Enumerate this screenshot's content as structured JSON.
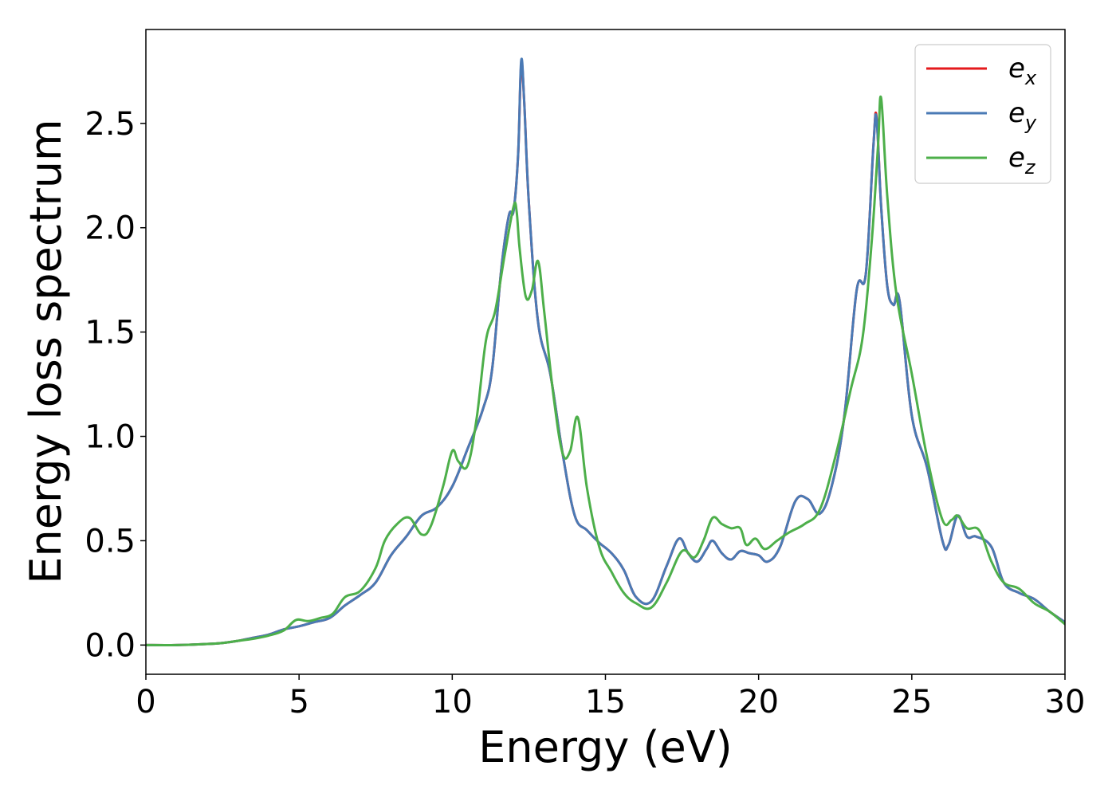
{
  "chart_data": {
    "type": "line",
    "title": "",
    "xlabel": "Energy (eV)",
    "ylabel": "Energy loss spectrum",
    "xlim": [
      0,
      30
    ],
    "ylim": [
      -0.14,
      2.95
    ],
    "xticks": [
      0,
      5,
      10,
      15,
      20,
      25,
      30
    ],
    "xtick_labels": [
      "0",
      "5",
      "10",
      "15",
      "20",
      "25",
      "30"
    ],
    "yticks": [
      0.0,
      0.5,
      1.0,
      1.5,
      2.0,
      2.5
    ],
    "ytick_labels": [
      "0.0",
      "0.5",
      "1.0",
      "1.5",
      "2.0",
      "2.5"
    ],
    "grid": false,
    "legend_position": "top-right",
    "series": [
      {
        "name": "e_x",
        "legend_main": "e",
        "legend_sub": "x",
        "color": "#e41a1c",
        "x": [
          0,
          1,
          2,
          2.5,
          3,
          3.5,
          4,
          4.5,
          5,
          5.5,
          6,
          6.5,
          7,
          7.5,
          8,
          8.5,
          9,
          9.5,
          10,
          10.5,
          11,
          11.3,
          11.6,
          11.85,
          12,
          12.15,
          12.25,
          12.35,
          12.5,
          12.8,
          13.2,
          13.6,
          14,
          14.4,
          14.8,
          15.2,
          15.6,
          16,
          16.5,
          17,
          17.4,
          17.7,
          18,
          18.3,
          18.5,
          18.8,
          19.1,
          19.4,
          19.7,
          20,
          20.3,
          20.7,
          21.2,
          21.6,
          22,
          22.4,
          22.8,
          23.2,
          23.5,
          23.75,
          23.85,
          24,
          24.2,
          24.4,
          24.6,
          25,
          25.5,
          26,
          26.2,
          26.5,
          26.8,
          27.1,
          27.6,
          28,
          28.5,
          29,
          29.5,
          30
        ],
        "y": [
          0.0,
          0.0,
          0.005,
          0.01,
          0.02,
          0.035,
          0.05,
          0.075,
          0.09,
          0.11,
          0.13,
          0.19,
          0.24,
          0.3,
          0.43,
          0.52,
          0.62,
          0.66,
          0.76,
          0.94,
          1.13,
          1.32,
          1.8,
          2.06,
          2.08,
          2.35,
          2.78,
          2.6,
          2.12,
          1.55,
          1.3,
          0.92,
          0.62,
          0.55,
          0.49,
          0.44,
          0.36,
          0.23,
          0.21,
          0.38,
          0.51,
          0.44,
          0.4,
          0.46,
          0.5,
          0.44,
          0.41,
          0.45,
          0.44,
          0.43,
          0.4,
          0.47,
          0.69,
          0.7,
          0.63,
          0.77,
          1.1,
          1.7,
          1.78,
          2.4,
          2.53,
          2.1,
          1.72,
          1.63,
          1.65,
          1.1,
          0.85,
          0.5,
          0.48,
          0.62,
          0.52,
          0.52,
          0.47,
          0.3,
          0.25,
          0.22,
          0.16,
          0.11
        ]
      },
      {
        "name": "e_y",
        "legend_main": "e",
        "legend_sub": "y",
        "color": "#4a7ab5",
        "x": [
          0,
          1,
          2,
          2.5,
          3,
          3.5,
          4,
          4.5,
          5,
          5.5,
          6,
          6.5,
          7,
          7.5,
          8,
          8.5,
          9,
          9.5,
          10,
          10.5,
          11,
          11.3,
          11.6,
          11.85,
          12,
          12.15,
          12.25,
          12.35,
          12.5,
          12.8,
          13.2,
          13.6,
          14,
          14.4,
          14.8,
          15.2,
          15.6,
          16,
          16.5,
          17,
          17.4,
          17.7,
          18,
          18.3,
          18.5,
          18.8,
          19.1,
          19.4,
          19.7,
          20,
          20.3,
          20.7,
          21.2,
          21.6,
          22,
          22.4,
          22.8,
          23.2,
          23.5,
          23.75,
          23.85,
          24,
          24.2,
          24.4,
          24.6,
          25,
          25.5,
          26,
          26.2,
          26.5,
          26.8,
          27.1,
          27.6,
          28,
          28.5,
          29,
          29.5,
          30
        ],
        "y": [
          0.0,
          0.0,
          0.005,
          0.01,
          0.02,
          0.035,
          0.05,
          0.075,
          0.09,
          0.11,
          0.13,
          0.19,
          0.24,
          0.3,
          0.43,
          0.52,
          0.62,
          0.66,
          0.76,
          0.94,
          1.13,
          1.32,
          1.8,
          2.06,
          2.08,
          2.35,
          2.8,
          2.6,
          2.12,
          1.55,
          1.3,
          0.92,
          0.62,
          0.55,
          0.49,
          0.44,
          0.36,
          0.23,
          0.21,
          0.38,
          0.51,
          0.44,
          0.4,
          0.46,
          0.5,
          0.44,
          0.41,
          0.45,
          0.44,
          0.43,
          0.4,
          0.47,
          0.69,
          0.7,
          0.63,
          0.77,
          1.1,
          1.7,
          1.78,
          2.4,
          2.52,
          2.1,
          1.72,
          1.63,
          1.65,
          1.1,
          0.85,
          0.5,
          0.48,
          0.62,
          0.52,
          0.52,
          0.47,
          0.3,
          0.25,
          0.22,
          0.16,
          0.11
        ]
      },
      {
        "name": "e_z",
        "legend_main": "e",
        "legend_sub": "z",
        "color": "#4daf4a",
        "x": [
          0,
          1,
          2,
          2.5,
          3,
          3.5,
          4,
          4.5,
          4.9,
          5.3,
          5.7,
          6.1,
          6.5,
          7,
          7.5,
          7.8,
          8.2,
          8.6,
          9,
          9.3,
          9.7,
          10,
          10.2,
          10.5,
          10.8,
          11.1,
          11.4,
          11.7,
          12,
          12.1,
          12.2,
          12.4,
          12.6,
          12.8,
          13,
          13.3,
          13.6,
          13.85,
          14.1,
          14.4,
          14.8,
          15.2,
          15.6,
          16,
          16.5,
          17,
          17.5,
          17.9,
          18.2,
          18.5,
          18.8,
          19.1,
          19.4,
          19.6,
          19.9,
          20.2,
          20.6,
          21,
          21.5,
          22,
          22.5,
          23,
          23.4,
          23.7,
          23.9,
          24,
          24.2,
          24.5,
          25,
          25.5,
          26,
          26.3,
          26.5,
          26.8,
          27.2,
          27.6,
          28,
          28.5,
          29,
          29.5,
          30
        ],
        "y": [
          0.0,
          0.0,
          0.005,
          0.01,
          0.02,
          0.03,
          0.045,
          0.07,
          0.12,
          0.115,
          0.13,
          0.15,
          0.23,
          0.26,
          0.37,
          0.5,
          0.58,
          0.61,
          0.53,
          0.57,
          0.76,
          0.93,
          0.88,
          0.86,
          1.09,
          1.46,
          1.6,
          1.86,
          2.1,
          2.08,
          1.9,
          1.67,
          1.7,
          1.84,
          1.6,
          1.2,
          0.92,
          0.93,
          1.09,
          0.75,
          0.47,
          0.35,
          0.25,
          0.2,
          0.18,
          0.3,
          0.45,
          0.42,
          0.5,
          0.61,
          0.58,
          0.56,
          0.56,
          0.48,
          0.51,
          0.46,
          0.5,
          0.54,
          0.58,
          0.65,
          0.9,
          1.22,
          1.48,
          1.95,
          2.4,
          2.62,
          2.15,
          1.68,
          1.3,
          0.9,
          0.6,
          0.6,
          0.62,
          0.56,
          0.55,
          0.4,
          0.3,
          0.27,
          0.2,
          0.16,
          0.1
        ]
      }
    ]
  }
}
